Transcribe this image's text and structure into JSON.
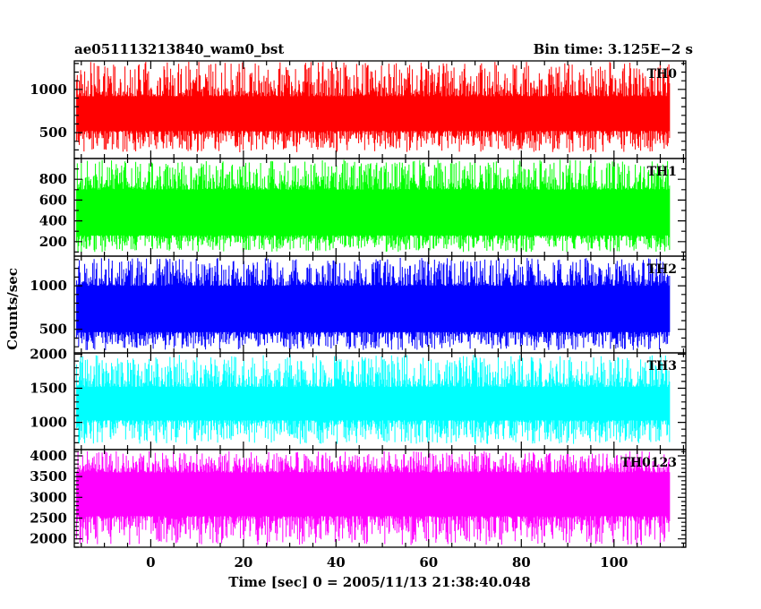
{
  "header": {
    "left_title": "ae051113213840_wam0_bst",
    "right_title": "Bin time: 3.125E−2 s"
  },
  "chart_data": {
    "type": "line",
    "shared_x": {
      "label": "Time [sec] 0 = 2005/11/13 21:38:40.048",
      "range": [
        -16.5,
        115.5
      ],
      "ticks": [
        0,
        20,
        40,
        60,
        80,
        100
      ],
      "tick_labels": [
        "0",
        "20",
        "40",
        "60",
        "80",
        "100"
      ],
      "data_range": [
        -16,
        112
      ],
      "bin_time": 0.03125
    },
    "ylabel": "Counts/sec",
    "panels": [
      {
        "name": "TH0",
        "color": "#ff0000",
        "ylim": [
          200,
          1330
        ],
        "mean": 700,
        "band_low": 520,
        "band_high": 920,
        "min": 270,
        "max": 1320,
        "major_ticks": [
          500,
          1000
        ],
        "tick_labels": [
          "500",
          "1000"
        ],
        "minor_step": 100
      },
      {
        "name": "TH1",
        "color": "#00ff00",
        "ylim": [
          60,
          1000
        ],
        "mean": 450,
        "band_low": 260,
        "band_high": 700,
        "min": 100,
        "max": 990,
        "major_ticks": [
          200,
          400,
          600,
          800
        ],
        "tick_labels": [
          "200",
          "400",
          "600",
          "800"
        ],
        "minor_step": 100
      },
      {
        "name": "TH2",
        "color": "#0000ff",
        "ylim": [
          230,
          1340
        ],
        "mean": 650,
        "band_low": 470,
        "band_high": 1000,
        "min": 260,
        "max": 1320,
        "major_ticks": [
          500,
          1000
        ],
        "tick_labels": [
          "500",
          "1000"
        ],
        "minor_step": 100
      },
      {
        "name": "TH3",
        "color": "#00ffff",
        "ylim": [
          600,
          2020
        ],
        "mean": 1250,
        "band_low": 1030,
        "band_high": 1520,
        "min": 680,
        "max": 1990,
        "major_ticks": [
          1000,
          1500,
          2000
        ],
        "tick_labels": [
          "1000",
          "1500",
          "2000"
        ],
        "minor_step": 100
      },
      {
        "name": "TH0123",
        "color": "#ff00ff",
        "ylim": [
          1800,
          4150
        ],
        "mean": 3000,
        "band_low": 2550,
        "band_high": 3600,
        "min": 1850,
        "max": 4120,
        "major_ticks": [
          2000,
          2500,
          3000,
          3500,
          4000
        ],
        "tick_labels": [
          "2000",
          "2500",
          "3000",
          "3500",
          "4000"
        ],
        "minor_step": 100
      }
    ]
  }
}
